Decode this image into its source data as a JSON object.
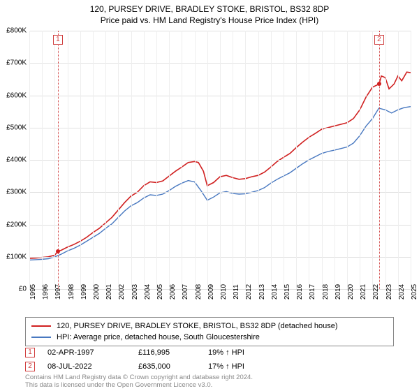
{
  "title": {
    "line1": "120, PURSEY DRIVE, BRADLEY STOKE, BRISTOL, BS32 8DP",
    "line2": "Price paid vs. HM Land Registry's House Price Index (HPI)"
  },
  "chart": {
    "type": "line",
    "background_color": "#ffffff",
    "grid_color": "#e0e0e0",
    "grid_color_x": "#eeeeee",
    "xlim": [
      1995,
      2025
    ],
    "ylim": [
      0,
      800000
    ],
    "y_ticks": [
      0,
      100000,
      200000,
      300000,
      400000,
      500000,
      600000,
      700000,
      800000
    ],
    "y_tick_labels": [
      "£0",
      "£100K",
      "£200K",
      "£300K",
      "£400K",
      "£500K",
      "£600K",
      "£700K",
      "£800K"
    ],
    "x_ticks": [
      1995,
      1996,
      1997,
      1998,
      1999,
      2000,
      2001,
      2002,
      2003,
      2004,
      2005,
      2006,
      2007,
      2008,
      2009,
      2010,
      2011,
      2012,
      2013,
      2014,
      2015,
      2016,
      2017,
      2018,
      2019,
      2020,
      2021,
      2022,
      2023,
      2024,
      2025
    ],
    "axis_fontsize": 10,
    "series": [
      {
        "name": "price_paid",
        "label": "120, PURSEY DRIVE, BRADLEY STOKE, BRISTOL, BS32 8DP (detached house)",
        "color": "#d02020",
        "line_width": 1.6,
        "data": [
          [
            1995,
            95000
          ],
          [
            1995.5,
            96000
          ],
          [
            1996,
            98000
          ],
          [
            1996.5,
            100000
          ],
          [
            1997,
            105000
          ],
          [
            1997.25,
            116995
          ],
          [
            1997.5,
            120000
          ],
          [
            1998,
            130000
          ],
          [
            1998.5,
            138000
          ],
          [
            1999,
            148000
          ],
          [
            1999.5,
            160000
          ],
          [
            2000,
            175000
          ],
          [
            2000.5,
            188000
          ],
          [
            2001,
            205000
          ],
          [
            2001.5,
            222000
          ],
          [
            2002,
            245000
          ],
          [
            2002.5,
            268000
          ],
          [
            2003,
            288000
          ],
          [
            2003.5,
            300000
          ],
          [
            2004,
            320000
          ],
          [
            2004.5,
            332000
          ],
          [
            2005,
            330000
          ],
          [
            2005.5,
            335000
          ],
          [
            2006,
            350000
          ],
          [
            2006.5,
            365000
          ],
          [
            2007,
            378000
          ],
          [
            2007.5,
            392000
          ],
          [
            2008,
            395000
          ],
          [
            2008.3,
            392000
          ],
          [
            2008.7,
            365000
          ],
          [
            2009,
            320000
          ],
          [
            2009.5,
            330000
          ],
          [
            2010,
            348000
          ],
          [
            2010.5,
            352000
          ],
          [
            2011,
            345000
          ],
          [
            2011.5,
            340000
          ],
          [
            2012,
            342000
          ],
          [
            2012.5,
            348000
          ],
          [
            2013,
            352000
          ],
          [
            2013.5,
            362000
          ],
          [
            2014,
            378000
          ],
          [
            2014.5,
            395000
          ],
          [
            2015,
            408000
          ],
          [
            2015.5,
            420000
          ],
          [
            2016,
            438000
          ],
          [
            2016.5,
            455000
          ],
          [
            2017,
            470000
          ],
          [
            2017.5,
            482000
          ],
          [
            2018,
            495000
          ],
          [
            2018.5,
            500000
          ],
          [
            2019,
            505000
          ],
          [
            2019.5,
            510000
          ],
          [
            2020,
            515000
          ],
          [
            2020.5,
            528000
          ],
          [
            2021,
            555000
          ],
          [
            2021.5,
            595000
          ],
          [
            2022,
            625000
          ],
          [
            2022.52,
            635000
          ],
          [
            2022.7,
            660000
          ],
          [
            2023,
            655000
          ],
          [
            2023.3,
            620000
          ],
          [
            2023.7,
            635000
          ],
          [
            2024,
            660000
          ],
          [
            2024.3,
            645000
          ],
          [
            2024.7,
            672000
          ],
          [
            2025,
            670000
          ]
        ]
      },
      {
        "name": "hpi",
        "label": "HPI: Average price, detached house, South Gloucestershire",
        "color": "#4878c0",
        "line_width": 1.4,
        "data": [
          [
            1995,
            90000
          ],
          [
            1995.5,
            91000
          ],
          [
            1996,
            92000
          ],
          [
            1996.5,
            94000
          ],
          [
            1997,
            100000
          ],
          [
            1997.5,
            108000
          ],
          [
            1998,
            118000
          ],
          [
            1998.5,
            126000
          ],
          [
            1999,
            136000
          ],
          [
            1999.5,
            148000
          ],
          [
            2000,
            160000
          ],
          [
            2000.5,
            172000
          ],
          [
            2001,
            188000
          ],
          [
            2001.5,
            202000
          ],
          [
            2002,
            222000
          ],
          [
            2002.5,
            242000
          ],
          [
            2003,
            258000
          ],
          [
            2003.5,
            268000
          ],
          [
            2004,
            282000
          ],
          [
            2004.5,
            292000
          ],
          [
            2005,
            290000
          ],
          [
            2005.5,
            294000
          ],
          [
            2006,
            305000
          ],
          [
            2006.5,
            318000
          ],
          [
            2007,
            328000
          ],
          [
            2007.5,
            336000
          ],
          [
            2008,
            332000
          ],
          [
            2008.5,
            305000
          ],
          [
            2009,
            275000
          ],
          [
            2009.5,
            285000
          ],
          [
            2010,
            298000
          ],
          [
            2010.5,
            302000
          ],
          [
            2011,
            296000
          ],
          [
            2011.5,
            294000
          ],
          [
            2012,
            295000
          ],
          [
            2012.5,
            300000
          ],
          [
            2013,
            305000
          ],
          [
            2013.5,
            314000
          ],
          [
            2014,
            328000
          ],
          [
            2014.5,
            340000
          ],
          [
            2015,
            350000
          ],
          [
            2015.5,
            360000
          ],
          [
            2016,
            374000
          ],
          [
            2016.5,
            388000
          ],
          [
            2017,
            400000
          ],
          [
            2017.5,
            410000
          ],
          [
            2018,
            420000
          ],
          [
            2018.5,
            426000
          ],
          [
            2019,
            430000
          ],
          [
            2019.5,
            435000
          ],
          [
            2020,
            440000
          ],
          [
            2020.5,
            452000
          ],
          [
            2021,
            475000
          ],
          [
            2021.5,
            505000
          ],
          [
            2022,
            528000
          ],
          [
            2022.5,
            560000
          ],
          [
            2023,
            555000
          ],
          [
            2023.5,
            545000
          ],
          [
            2024,
            555000
          ],
          [
            2024.5,
            562000
          ],
          [
            2025,
            565000
          ]
        ]
      }
    ],
    "markers": [
      {
        "id": "1",
        "x": 1997.25,
        "y": 116995,
        "vline_color": "#d04040"
      },
      {
        "id": "2",
        "x": 2022.52,
        "y": 635000,
        "vline_color": "#d04040"
      }
    ]
  },
  "legend": {
    "border_color": "#888888",
    "items": [
      {
        "color": "#d02020",
        "label": "120, PURSEY DRIVE, BRADLEY STOKE, BRISTOL, BS32 8DP (detached house)"
      },
      {
        "color": "#4878c0",
        "label": "HPI: Average price, detached house, South Gloucestershire"
      }
    ]
  },
  "events": [
    {
      "id": "1",
      "date": "02-APR-1997",
      "price": "£116,995",
      "pct": "19% ↑ HPI"
    },
    {
      "id": "2",
      "date": "08-JUL-2022",
      "price": "£635,000",
      "pct": "17% ↑ HPI"
    }
  ],
  "footer": {
    "line1": "Contains HM Land Registry data © Crown copyright and database right 2024.",
    "line2": "This data is licensed under the Open Government Licence v3.0."
  }
}
